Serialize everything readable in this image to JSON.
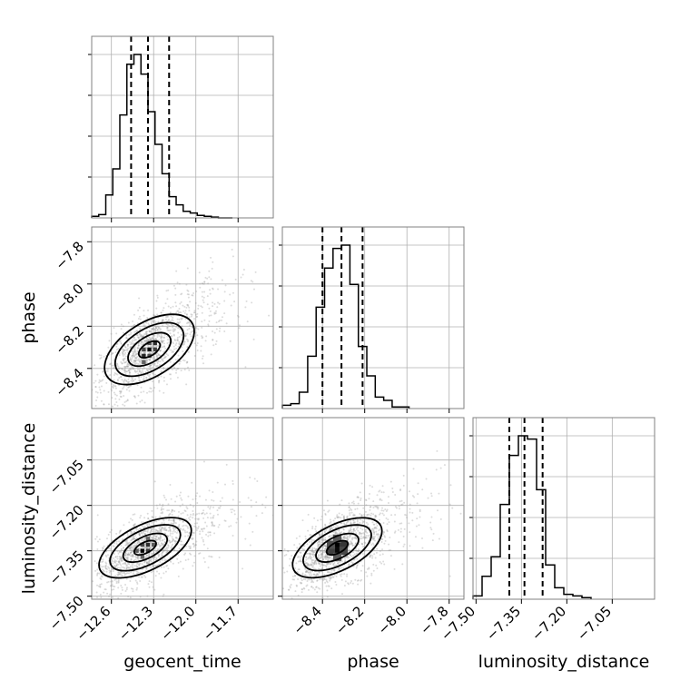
{
  "chart_data": {
    "type": "corner",
    "params": [
      "geocent_time",
      "phase",
      "luminosity_distance"
    ],
    "axes": {
      "geocent_time": {
        "xlabel": "geocent_time",
        "range": [
          -12.74,
          -11.45
        ],
        "ticks": [
          -12.6,
          -12.3,
          -12.0,
          -11.7
        ],
        "tick_labels": [
          "−12.6",
          "−12.3",
          "−12.0",
          "−11.7"
        ]
      },
      "phase": {
        "xlabel": "phase",
        "ylabel": "phase",
        "range": [
          -8.59,
          -7.73
        ],
        "ticks": [
          -8.4,
          -8.2,
          -8.0,
          -7.8
        ],
        "tick_labels": [
          "−8.4",
          "−8.2",
          "−8.0",
          "−7.8"
        ]
      },
      "luminosity_distance": {
        "xlabel": "luminosity_distance",
        "ylabel": "luminosity_distance",
        "range": [
          -7.51,
          -6.91
        ],
        "ticks": [
          -7.5,
          -7.35,
          -7.2,
          -7.05
        ],
        "tick_labels": [
          "−7.50",
          "−7.35",
          "−7.20",
          "−7.05"
        ]
      }
    },
    "histograms": {
      "geocent_time": {
        "bin_edges": [
          -12.74,
          -12.69,
          -12.64,
          -12.59,
          -12.54,
          -12.49,
          -12.44,
          -12.39,
          -12.34,
          -12.29,
          -12.24,
          -12.19,
          -12.14,
          -12.09,
          -12.04,
          -11.99,
          -11.94,
          -11.89,
          -11.84,
          -11.79,
          -11.74
        ],
        "counts": [
          0.01,
          0.02,
          0.14,
          0.3,
          0.63,
          0.94,
          1.0,
          0.88,
          0.65,
          0.45,
          0.27,
          0.13,
          0.08,
          0.04,
          0.03,
          0.015,
          0.01,
          0.005,
          0,
          0
        ],
        "quantiles": [
          -12.46,
          -12.34,
          -12.19
        ]
      },
      "phase": {
        "bin_edges": [
          -8.59,
          -8.55,
          -8.51,
          -8.47,
          -8.43,
          -8.39,
          -8.35,
          -8.31,
          -8.27,
          -8.23,
          -8.19,
          -8.15,
          -8.11,
          -8.07,
          -8.03,
          -7.99
        ],
        "counts": [
          0.02,
          0.03,
          0.1,
          0.32,
          0.62,
          0.86,
          0.98,
          1.0,
          0.76,
          0.38,
          0.2,
          0.07,
          0.05,
          0.01,
          0.01
        ],
        "quantiles": [
          -8.4,
          -8.31,
          -8.21
        ]
      },
      "luminosity_distance": {
        "bin_edges": [
          -7.51,
          -7.48,
          -7.45,
          -7.42,
          -7.39,
          -7.36,
          -7.33,
          -7.3,
          -7.27,
          -7.24,
          -7.21,
          -7.18,
          -7.15,
          -7.12
        ],
        "counts": [
          0.02,
          0.14,
          0.26,
          0.58,
          0.88,
          1.0,
          0.98,
          0.67,
          0.21,
          0.07,
          0.03,
          0.02,
          0.01
        ],
        "quantiles": [
          -7.39,
          -7.34,
          -7.28
        ]
      }
    },
    "pairs": [
      {
        "x": "geocent_time",
        "y": "phase",
        "center": [
          -12.33,
          -8.31
        ],
        "spread": [
          0.17,
          0.11
        ],
        "correlation": 0.65,
        "contour_levels": [
          0.5,
          1.0,
          1.6,
          2.1
        ],
        "density_cells": [
          {
            "x": -12.33,
            "y": -8.31,
            "w": 0.028
          },
          {
            "x": -12.37,
            "y": -8.34,
            "w": 0.028
          },
          {
            "x": -12.29,
            "y": -8.28,
            "w": 0.028
          },
          {
            "x": -12.29,
            "y": -8.31,
            "w": 0.028
          },
          {
            "x": -12.37,
            "y": -8.31,
            "w": 0.028
          },
          {
            "x": -12.33,
            "y": -8.28,
            "w": 0.028
          },
          {
            "x": -12.33,
            "y": -8.34,
            "w": 0.028
          },
          {
            "x": -12.37,
            "y": -8.37,
            "w": 0.028
          }
        ],
        "density_values": [
          1.0,
          0.8,
          0.75,
          0.65,
          0.6,
          0.55,
          0.55,
          0.45
        ]
      },
      {
        "x": "geocent_time",
        "y": "luminosity_distance",
        "center": [
          -12.36,
          -7.34
        ],
        "spread": [
          0.17,
          0.065
        ],
        "correlation": 0.6,
        "contour_levels": [
          0.5,
          1.0,
          1.6,
          2.1
        ],
        "density_cells": [
          {
            "x": -12.38,
            "y": -7.35,
            "w": 0.028
          },
          {
            "x": -12.34,
            "y": -7.33,
            "w": 0.028
          },
          {
            "x": -12.34,
            "y": -7.35,
            "w": 0.028
          },
          {
            "x": -12.38,
            "y": -7.33,
            "w": 0.028
          },
          {
            "x": -12.42,
            "y": -7.35,
            "w": 0.028
          },
          {
            "x": -12.3,
            "y": -7.33,
            "w": 0.028
          },
          {
            "x": -12.34,
            "y": -7.31,
            "w": 0.028
          },
          {
            "x": -12.38,
            "y": -7.37,
            "w": 0.028
          }
        ],
        "density_values": [
          1.0,
          0.75,
          0.7,
          0.6,
          0.5,
          0.5,
          0.45,
          0.45
        ]
      },
      {
        "x": "phase",
        "y": "luminosity_distance",
        "center": [
          -8.33,
          -7.34
        ],
        "spread": [
          0.11,
          0.065
        ],
        "correlation": 0.6,
        "contour_levels": [
          0.5,
          1.0,
          1.6,
          2.1
        ],
        "density_cells": [
          {
            "x": -8.33,
            "y": -7.33,
            "w": 0.028
          },
          {
            "x": -8.33,
            "y": -7.35,
            "w": 0.028
          },
          {
            "x": -8.3,
            "y": -7.33,
            "w": 0.028
          },
          {
            "x": -8.36,
            "y": -7.35,
            "w": 0.028
          },
          {
            "x": -8.3,
            "y": -7.35,
            "w": 0.028
          },
          {
            "x": -8.36,
            "y": -7.33,
            "w": 0.028
          },
          {
            "x": -8.33,
            "y": -7.31,
            "w": 0.028
          },
          {
            "x": -8.33,
            "y": -7.37,
            "w": 0.028
          }
        ],
        "density_values": [
          1.0,
          0.95,
          0.7,
          0.65,
          0.6,
          0.55,
          0.5,
          0.5
        ]
      }
    ],
    "grid": true,
    "colors": {
      "hist": "#000000",
      "points": "#9a9a9a",
      "contour": "#000000",
      "grid": "#b0b0b0",
      "spine": "#808080"
    }
  }
}
